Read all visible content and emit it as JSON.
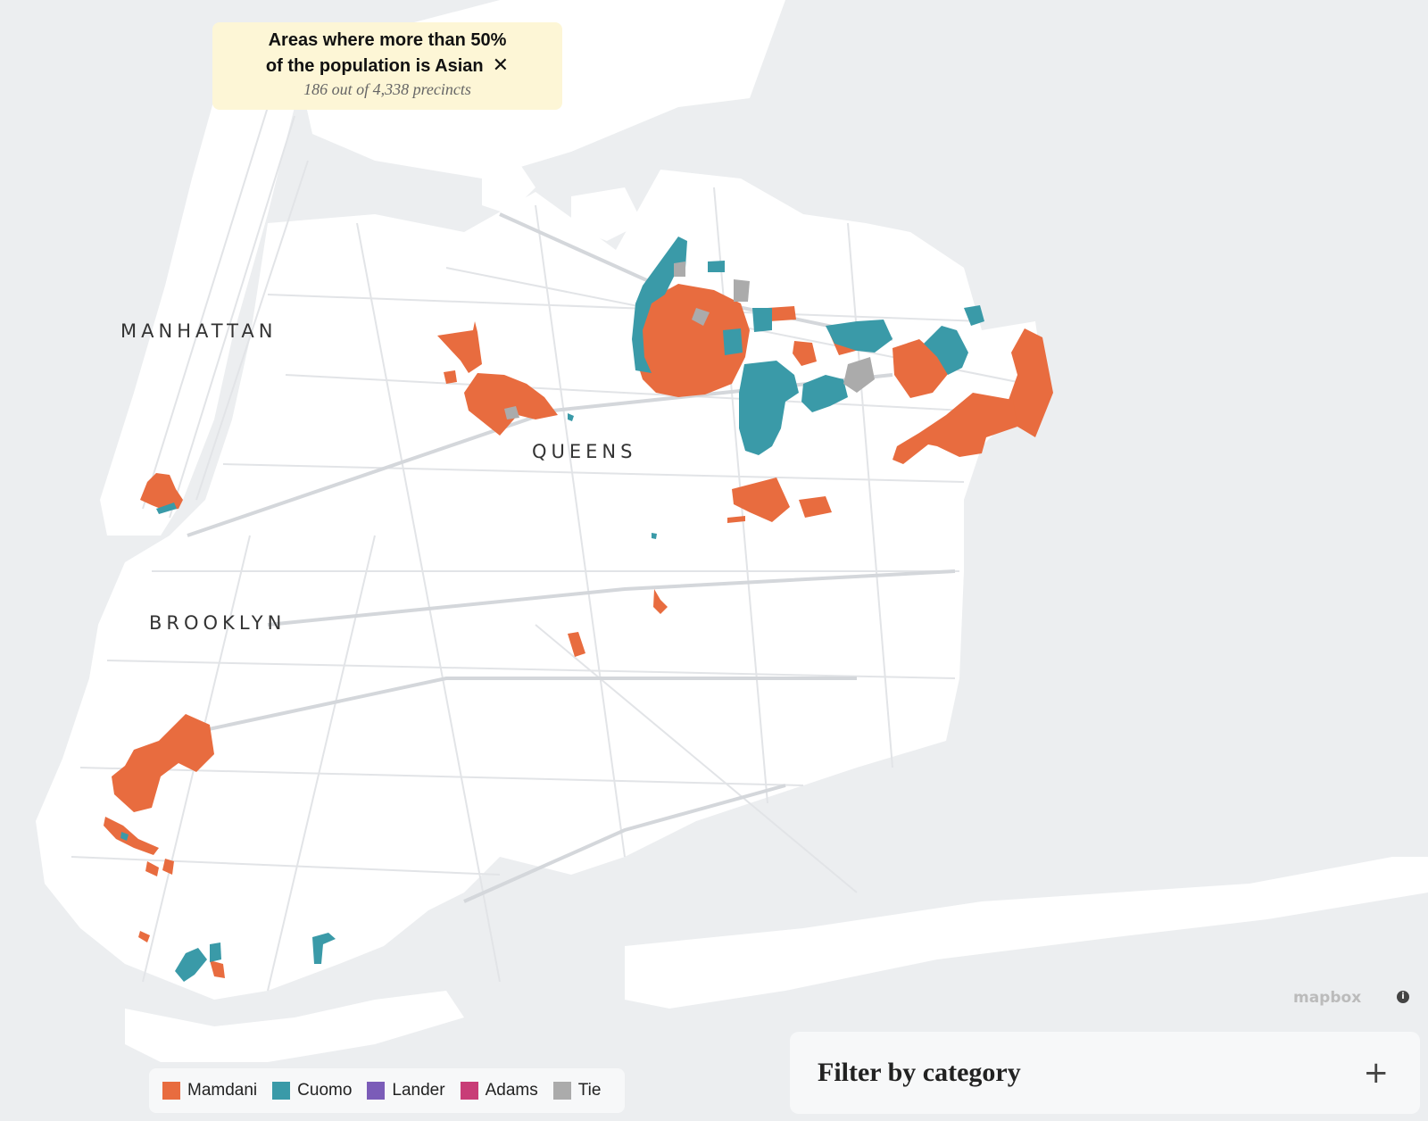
{
  "filter_chip": {
    "title_line1": "Areas where more than 50%",
    "title_line2": "of the population is Asian",
    "subtitle": "186 out of 4,338 precincts",
    "close_icon": "close-icon"
  },
  "labels": {
    "manhattan": "MANHATTAN",
    "queens": "QUEENS",
    "brooklyn": "BROOKLYN"
  },
  "legend": [
    {
      "label": "Mamdani",
      "color": "#e86c3f"
    },
    {
      "label": "Cuomo",
      "color": "#3a9aa8"
    },
    {
      "label": "Lander",
      "color": "#7b5cb8"
    },
    {
      "label": "Adams",
      "color": "#c83d77"
    },
    {
      "label": "Tie",
      "color": "#ababab"
    }
  ],
  "filter_panel": {
    "title": "Filter by category",
    "expand_icon": "plus-icon"
  },
  "attribution": {
    "logo": "mapbox",
    "info_icon": "info-icon"
  },
  "colors": {
    "water": "#eceef0",
    "land": "#ffffff",
    "mamdani": "#e86c3f",
    "cuomo": "#3a9aa8",
    "tie": "#ababab"
  }
}
